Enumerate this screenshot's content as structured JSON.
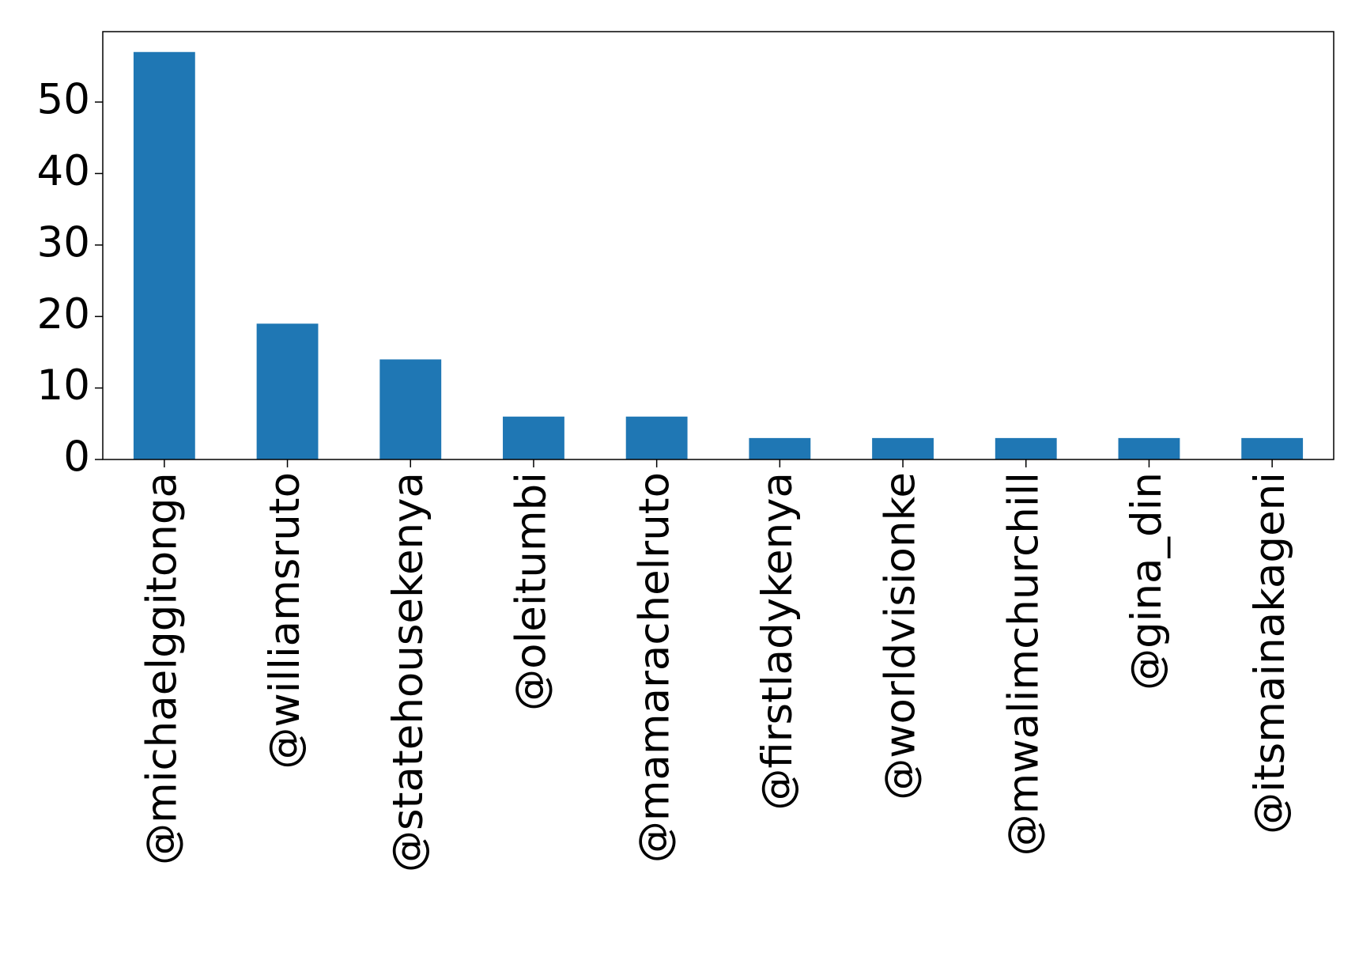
{
  "chart_data": {
    "type": "bar",
    "categories": [
      "@michaelggitonga",
      "@williamsruto",
      "@statehousekenya",
      "@oleitumbi",
      "@mamarachelruto",
      "@firstladykenya",
      "@worldvisionke",
      "@mwalimchurchill",
      "@gina_din",
      "@itsmainakageni"
    ],
    "values": [
      57,
      19,
      14,
      6,
      6,
      3,
      3,
      3,
      3,
      3
    ],
    "color": "#1f77b4",
    "ylim": [
      0,
      59.85
    ],
    "yticks": [
      0,
      10,
      20,
      30,
      40,
      50
    ],
    "grid": false
  }
}
